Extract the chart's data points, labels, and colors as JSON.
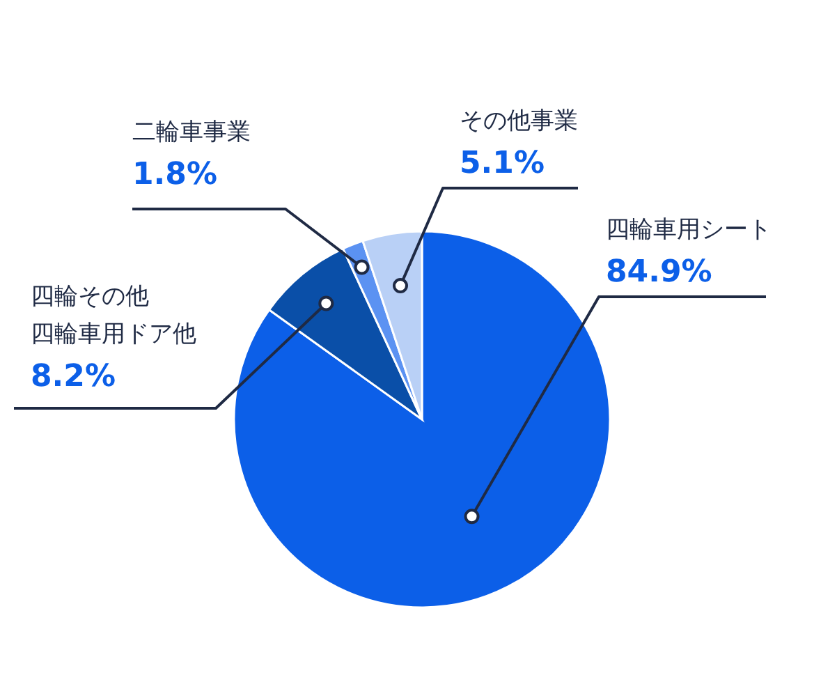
{
  "chart_data": {
    "type": "pie",
    "categories": [
      "四輪車用シート",
      "四輪その他四輪車用ドア他",
      "二輪車事業",
      "その他事業"
    ],
    "values": [
      84.9,
      8.2,
      1.8,
      5.1
    ],
    "value_labels": [
      "84.9%",
      "8.2%",
      "1.8%",
      "5.1%"
    ],
    "colors": [
      "#0c5fe8",
      "#0a4fa8",
      "#5b92f2",
      "#b9d0f6"
    ],
    "legend": false
  }
}
